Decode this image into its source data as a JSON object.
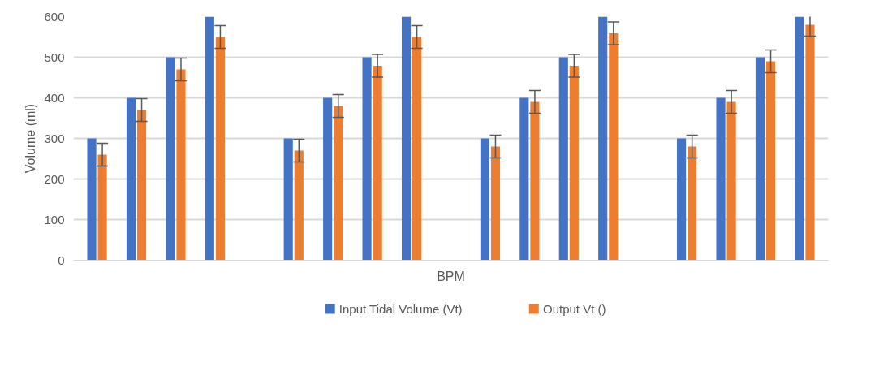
{
  "chart_data": {
    "type": "bar",
    "xlabel": "BPM",
    "ylabel": "Volume (ml)",
    "categories": [
      null,
      null,
      null,
      null,
      null,
      null,
      null,
      null,
      null,
      null,
      null,
      null,
      null,
      null,
      null,
      null,
      null,
      null,
      null
    ],
    "series": [
      {
        "name": "Input Tidal Volume (Vt)",
        "color": "#4472c4",
        "values": [
          300,
          400,
          500,
          600,
          null,
          300,
          400,
          500,
          600,
          null,
          300,
          400,
          500,
          600,
          null,
          300,
          400,
          500,
          600
        ]
      },
      {
        "name": "Output Vt ()",
        "color": "#ed7d31",
        "values": [
          260,
          370,
          470,
          550,
          null,
          270,
          380,
          479,
          550,
          null,
          280,
          390,
          479,
          559,
          null,
          280,
          390,
          490,
          580
        ],
        "errors": [
          28,
          28,
          28,
          28,
          null,
          28,
          28,
          28,
          28,
          null,
          28,
          28,
          28,
          28,
          null,
          28,
          28,
          28,
          28
        ]
      }
    ],
    "ylim": [
      0,
      600
    ],
    "yticks": [
      0,
      100,
      200,
      300,
      400,
      500,
      600
    ],
    "grid": "y",
    "legend": "bottom",
    "tick_labels": "y"
  }
}
